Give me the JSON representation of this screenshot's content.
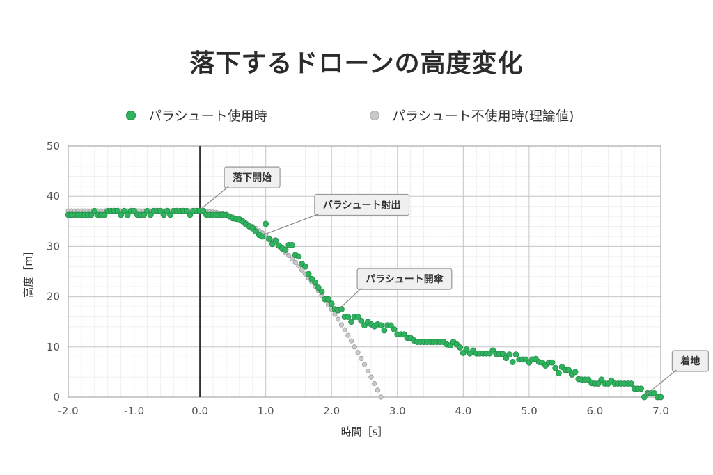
{
  "chart_data": {
    "type": "scatter",
    "title": "落下するドローンの高度変化",
    "xlabel": "時間［s］",
    "ylabel": "高度［m］",
    "xlim": [
      -2.0,
      7.0
    ],
    "ylim": [
      0,
      50
    ],
    "x_ticks": [
      "-2.0",
      "-1.0",
      "0.0",
      "1.0",
      "2.0",
      "3.0",
      "4.0",
      "5.0",
      "6.0",
      "7.0"
    ],
    "y_ticks": [
      "0",
      "10",
      "20",
      "30",
      "40",
      "50"
    ],
    "grid": true,
    "legend_position": "top",
    "series": [
      {
        "name": "パラシュート使用時",
        "color": "#2fb35f",
        "points": [
          [
            -2.0,
            36.3
          ],
          [
            -1.95,
            36.3
          ],
          [
            -1.9,
            36.3
          ],
          [
            -1.85,
            36.3
          ],
          [
            -1.8,
            36.3
          ],
          [
            -1.75,
            36.3
          ],
          [
            -1.7,
            36.3
          ],
          [
            -1.65,
            36.3
          ],
          [
            -1.6,
            37.1
          ],
          [
            -1.55,
            36.3
          ],
          [
            -1.5,
            36.3
          ],
          [
            -1.45,
            36.3
          ],
          [
            -1.4,
            37.1
          ],
          [
            -1.35,
            37.1
          ],
          [
            -1.3,
            37.1
          ],
          [
            -1.25,
            37.1
          ],
          [
            -1.2,
            36.3
          ],
          [
            -1.15,
            37.1
          ],
          [
            -1.1,
            36.3
          ],
          [
            -1.05,
            37.1
          ],
          [
            -1.0,
            37.1
          ],
          [
            -0.95,
            36.3
          ],
          [
            -0.9,
            36.3
          ],
          [
            -0.85,
            36.3
          ],
          [
            -0.8,
            37.1
          ],
          [
            -0.75,
            36.3
          ],
          [
            -0.7,
            37.1
          ],
          [
            -0.65,
            37.1
          ],
          [
            -0.6,
            37.1
          ],
          [
            -0.55,
            36.3
          ],
          [
            -0.5,
            37.1
          ],
          [
            -0.45,
            36.3
          ],
          [
            -0.4,
            37.1
          ],
          [
            -0.35,
            37.1
          ],
          [
            -0.3,
            37.1
          ],
          [
            -0.25,
            37.1
          ],
          [
            -0.2,
            37.1
          ],
          [
            -0.15,
            36.3
          ],
          [
            -0.1,
            37.1
          ],
          [
            -0.05,
            37.1
          ],
          [
            0.0,
            37.1
          ],
          [
            0.05,
            37.1
          ],
          [
            0.1,
            36.3
          ],
          [
            0.15,
            36.3
          ],
          [
            0.2,
            36.3
          ],
          [
            0.25,
            36.3
          ],
          [
            0.3,
            36.3
          ],
          [
            0.35,
            36.3
          ],
          [
            0.4,
            36.3
          ],
          [
            0.45,
            36.0
          ],
          [
            0.5,
            35.6
          ],
          [
            0.55,
            35.5
          ],
          [
            0.6,
            35.4
          ],
          [
            0.65,
            35.0
          ],
          [
            0.7,
            34.4
          ],
          [
            0.75,
            34.0
          ],
          [
            0.8,
            33.6
          ],
          [
            0.85,
            33.0
          ],
          [
            0.9,
            32.3
          ],
          [
            0.95,
            32.0
          ],
          [
            1.0,
            34.5
          ],
          [
            1.05,
            31.5
          ],
          [
            1.1,
            30.5
          ],
          [
            1.15,
            31.2
          ],
          [
            1.2,
            30.2
          ],
          [
            1.25,
            29.6
          ],
          [
            1.3,
            29.3
          ],
          [
            1.35,
            30.3
          ],
          [
            1.4,
            30.3
          ],
          [
            1.45,
            28.3
          ],
          [
            1.5,
            28.0
          ],
          [
            1.55,
            26.5
          ],
          [
            1.6,
            26.0
          ],
          [
            1.65,
            24.5
          ],
          [
            1.7,
            23.5
          ],
          [
            1.75,
            22.8
          ],
          [
            1.8,
            21.8
          ],
          [
            1.85,
            21.0
          ],
          [
            1.9,
            19.5
          ],
          [
            1.95,
            19.5
          ],
          [
            2.0,
            18.6
          ],
          [
            2.05,
            17.5
          ],
          [
            2.1,
            17.3
          ],
          [
            2.15,
            17.5
          ],
          [
            2.2,
            16.0
          ],
          [
            2.25,
            16.0
          ],
          [
            2.3,
            15.0
          ],
          [
            2.35,
            16.0
          ],
          [
            2.4,
            16.0
          ],
          [
            2.45,
            15.2
          ],
          [
            2.5,
            14.3
          ],
          [
            2.55,
            15.0
          ],
          [
            2.6,
            14.5
          ],
          [
            2.65,
            14.1
          ],
          [
            2.7,
            14.5
          ],
          [
            2.75,
            14.3
          ],
          [
            2.8,
            13.3
          ],
          [
            2.85,
            14.3
          ],
          [
            2.9,
            14.3
          ],
          [
            2.95,
            13.5
          ],
          [
            3.0,
            12.5
          ],
          [
            3.05,
            12.5
          ],
          [
            3.1,
            12.5
          ],
          [
            3.15,
            11.8
          ],
          [
            3.2,
            11.8
          ],
          [
            3.25,
            11.3
          ],
          [
            3.3,
            11.0
          ],
          [
            3.35,
            11.0
          ],
          [
            3.4,
            11.0
          ],
          [
            3.45,
            11.0
          ],
          [
            3.5,
            11.0
          ],
          [
            3.55,
            11.0
          ],
          [
            3.6,
            11.0
          ],
          [
            3.65,
            11.0
          ],
          [
            3.7,
            11.0
          ],
          [
            3.75,
            10.5
          ],
          [
            3.8,
            10.3
          ],
          [
            3.85,
            11.0
          ],
          [
            3.9,
            10.5
          ],
          [
            3.95,
            9.9
          ],
          [
            4.0,
            8.8
          ],
          [
            4.05,
            9.5
          ],
          [
            4.1,
            8.7
          ],
          [
            4.15,
            9.3
          ],
          [
            4.2,
            8.7
          ],
          [
            4.25,
            8.7
          ],
          [
            4.3,
            8.7
          ],
          [
            4.35,
            8.7
          ],
          [
            4.4,
            8.7
          ],
          [
            4.45,
            9.3
          ],
          [
            4.5,
            8.6
          ],
          [
            4.55,
            8.6
          ],
          [
            4.6,
            8.6
          ],
          [
            4.65,
            7.8
          ],
          [
            4.7,
            8.5
          ],
          [
            4.75,
            7.0
          ],
          [
            4.8,
            8.5
          ],
          [
            4.85,
            7.5
          ],
          [
            4.9,
            7.5
          ],
          [
            4.95,
            7.5
          ],
          [
            5.0,
            6.9
          ],
          [
            5.05,
            7.5
          ],
          [
            5.1,
            7.6
          ],
          [
            5.15,
            7.0
          ],
          [
            5.2,
            6.9
          ],
          [
            5.25,
            6.3
          ],
          [
            5.3,
            6.9
          ],
          [
            5.35,
            6.9
          ],
          [
            5.4,
            5.8
          ],
          [
            5.45,
            4.8
          ],
          [
            5.5,
            6.0
          ],
          [
            5.55,
            5.4
          ],
          [
            5.6,
            5.4
          ],
          [
            5.65,
            4.5
          ],
          [
            5.7,
            5.0
          ],
          [
            5.75,
            3.6
          ],
          [
            5.8,
            3.5
          ],
          [
            5.85,
            3.5
          ],
          [
            5.9,
            3.5
          ],
          [
            5.95,
            2.8
          ],
          [
            6.0,
            2.7
          ],
          [
            6.05,
            2.7
          ],
          [
            6.1,
            3.5
          ],
          [
            6.15,
            2.7
          ],
          [
            6.2,
            2.7
          ],
          [
            6.25,
            3.3
          ],
          [
            6.3,
            2.7
          ],
          [
            6.35,
            2.7
          ],
          [
            6.4,
            2.7
          ],
          [
            6.45,
            2.7
          ],
          [
            6.5,
            2.7
          ],
          [
            6.55,
            2.7
          ],
          [
            6.6,
            1.7
          ],
          [
            6.65,
            1.7
          ],
          [
            6.7,
            1.7
          ],
          [
            6.75,
            0.0
          ],
          [
            6.8,
            0.8
          ],
          [
            6.85,
            0.8
          ],
          [
            6.9,
            0.8
          ],
          [
            6.95,
            0.0
          ],
          [
            7.0,
            0.0
          ]
        ]
      },
      {
        "name": "パラシュート不使用時(理論値)",
        "color": "#c9c9c9",
        "points": [
          [
            -2.0,
            37.1
          ],
          [
            -1.95,
            37.1
          ],
          [
            -1.9,
            37.1
          ],
          [
            -1.85,
            37.1
          ],
          [
            -1.8,
            37.1
          ],
          [
            -1.75,
            37.1
          ],
          [
            -1.7,
            37.1
          ],
          [
            -1.65,
            37.1
          ],
          [
            -1.6,
            37.1
          ],
          [
            -1.55,
            37.1
          ],
          [
            -1.5,
            37.1
          ],
          [
            -1.45,
            37.1
          ],
          [
            -1.4,
            37.1
          ],
          [
            -1.35,
            37.1
          ],
          [
            -1.3,
            37.1
          ],
          [
            -1.25,
            37.1
          ],
          [
            -1.2,
            37.1
          ],
          [
            -1.15,
            37.1
          ],
          [
            -1.1,
            37.1
          ],
          [
            -1.05,
            37.1
          ],
          [
            -1.0,
            37.1
          ],
          [
            -0.95,
            37.1
          ],
          [
            -0.9,
            37.1
          ],
          [
            -0.85,
            37.1
          ],
          [
            -0.8,
            37.1
          ],
          [
            -0.75,
            37.1
          ],
          [
            -0.7,
            37.1
          ],
          [
            -0.65,
            37.1
          ],
          [
            -0.6,
            37.1
          ],
          [
            -0.55,
            37.1
          ],
          [
            -0.5,
            37.1
          ],
          [
            -0.45,
            37.1
          ],
          [
            -0.4,
            37.1
          ],
          [
            -0.35,
            37.1
          ],
          [
            -0.3,
            37.1
          ],
          [
            -0.25,
            37.1
          ],
          [
            -0.2,
            37.1
          ],
          [
            -0.15,
            37.1
          ],
          [
            -0.1,
            37.1
          ],
          [
            -0.05,
            37.1
          ],
          [
            0.0,
            37.1
          ],
          [
            0.05,
            37.1
          ],
          [
            0.1,
            37.0
          ],
          [
            0.15,
            36.9
          ],
          [
            0.2,
            36.9
          ],
          [
            0.25,
            36.8
          ],
          [
            0.3,
            36.6
          ],
          [
            0.35,
            36.5
          ],
          [
            0.4,
            36.3
          ],
          [
            0.45,
            36.1
          ],
          [
            0.5,
            35.9
          ],
          [
            0.55,
            35.6
          ],
          [
            0.6,
            35.3
          ],
          [
            0.65,
            35.0
          ],
          [
            0.7,
            34.7
          ],
          [
            0.75,
            34.3
          ],
          [
            0.8,
            34.0
          ],
          [
            0.85,
            33.6
          ],
          [
            0.9,
            33.1
          ],
          [
            0.95,
            32.7
          ],
          [
            1.0,
            32.2
          ],
          [
            1.05,
            31.7
          ],
          [
            1.1,
            31.2
          ],
          [
            1.15,
            30.6
          ],
          [
            1.2,
            30.0
          ],
          [
            1.25,
            29.4
          ],
          [
            1.3,
            28.8
          ],
          [
            1.35,
            28.2
          ],
          [
            1.4,
            27.5
          ],
          [
            1.45,
            26.8
          ],
          [
            1.5,
            26.1
          ],
          [
            1.55,
            25.3
          ],
          [
            1.6,
            24.5
          ],
          [
            1.65,
            23.7
          ],
          [
            1.7,
            22.9
          ],
          [
            1.75,
            22.1
          ],
          [
            1.8,
            21.2
          ],
          [
            1.85,
            20.3
          ],
          [
            1.9,
            19.4
          ],
          [
            1.95,
            18.4
          ],
          [
            2.0,
            17.5
          ],
          [
            2.05,
            16.5
          ],
          [
            2.1,
            15.5
          ],
          [
            2.15,
            14.4
          ],
          [
            2.2,
            13.4
          ],
          [
            2.25,
            12.3
          ],
          [
            2.3,
            11.2
          ],
          [
            2.35,
            10.0
          ],
          [
            2.4,
            8.9
          ],
          [
            2.45,
            7.7
          ],
          [
            2.5,
            6.5
          ],
          [
            2.55,
            5.2
          ],
          [
            2.6,
            4.0
          ],
          [
            2.65,
            2.7
          ],
          [
            2.7,
            1.4
          ],
          [
            2.75,
            0.0
          ]
        ]
      }
    ],
    "annotations": [
      {
        "text": "落下開始",
        "x": 0.0,
        "y": 37.1
      },
      {
        "text": "パラシュート射出",
        "x": 1.0,
        "y": 32.2
      },
      {
        "text": "パラシュート開傘",
        "x": 2.05,
        "y": 16.6
      },
      {
        "text": "着地",
        "x": 6.75,
        "y": 0.0
      }
    ]
  }
}
